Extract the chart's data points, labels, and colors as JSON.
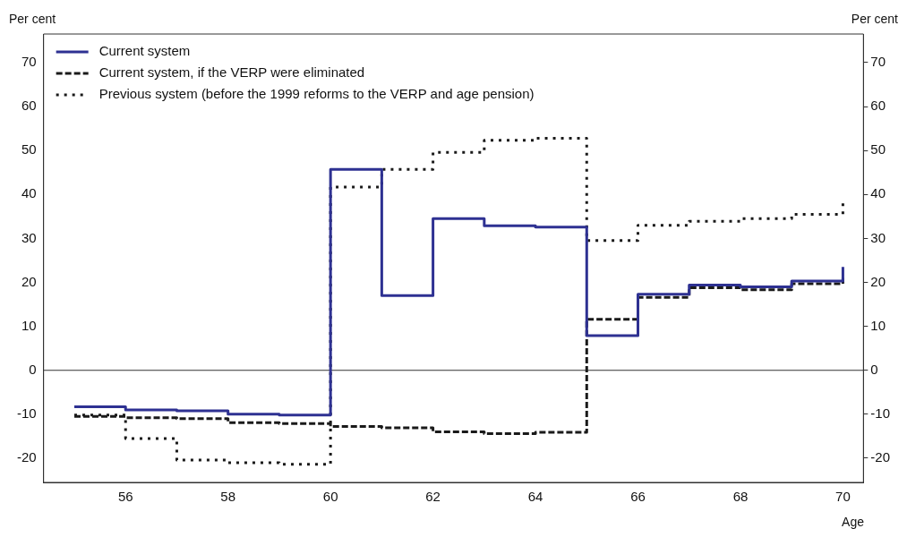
{
  "chart_data": {
    "type": "step",
    "ylabel": "Per cent",
    "y2label": "Per cent",
    "xlabel": "Age",
    "x": [
      55,
      56,
      57,
      58,
      59,
      60,
      61,
      62,
      63,
      64,
      65,
      66,
      67,
      68,
      69,
      70
    ],
    "series": [
      {
        "name": "Current system",
        "color": "#2e3192",
        "line_style": "solid",
        "values": [
          -8.3,
          -9,
          -9.2,
          -10,
          -10.2,
          45.7,
          17,
          34.5,
          32.9,
          32.6,
          7.9,
          17.3,
          19.4,
          19,
          20.3,
          23.5
        ]
      },
      {
        "name": "Current system, if the VERP were eliminated",
        "color": "#1a1a1a",
        "line_style": "dashed",
        "values": [
          -10.5,
          -10.8,
          -11,
          -11.9,
          -12.1,
          -12.8,
          -13.1,
          -14,
          -14.4,
          -14.1,
          11.6,
          16.6,
          18.8,
          18.3,
          19.7,
          21
        ]
      },
      {
        "name": "Previous system (before the 1999 reforms to the VERP and age pension)",
        "color": "#1a1a1a",
        "line_style": "dotted",
        "values": [
          -10.2,
          -15.5,
          -20.4,
          -21,
          -21.4,
          41.7,
          45.7,
          49.6,
          52.3,
          52.8,
          29.5,
          33,
          33.9,
          34.5,
          35.5,
          38
        ]
      }
    ],
    "xlim": [
      54.4,
      70.4
    ],
    "xticks": [
      56,
      58,
      60,
      62,
      64,
      66,
      68,
      70
    ],
    "ylim": [
      -25.5,
      76.5
    ],
    "yticks": [
      -20,
      -10,
      0,
      10,
      20,
      30,
      40,
      50,
      60,
      70
    ],
    "y2lim": [
      -25.5,
      76.5
    ],
    "y2ticks": [
      -20,
      -10,
      0,
      10,
      20,
      30,
      40,
      50,
      60,
      70
    ],
    "ref_lines": [
      {
        "axis": "y",
        "value": 0,
        "color": "#333333"
      }
    ],
    "grid": false,
    "legend": "top left",
    "marker": "none"
  }
}
